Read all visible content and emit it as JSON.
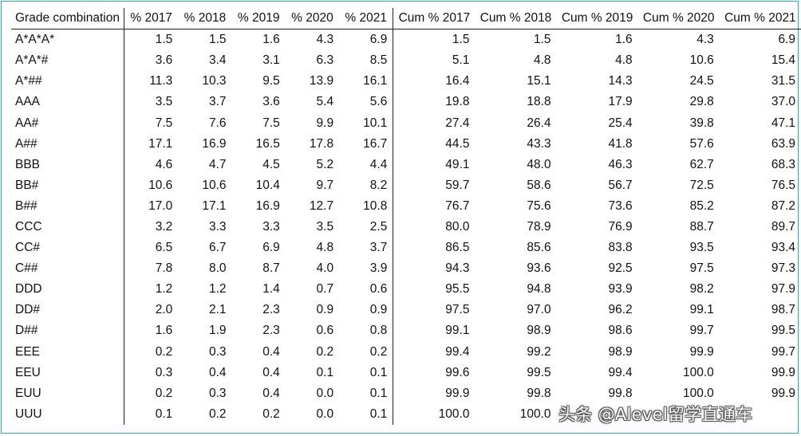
{
  "table": {
    "headers": [
      "Grade combination",
      "% 2017",
      "% 2018",
      "% 2019",
      "% 2020",
      "% 2021",
      "Cum % 2017",
      "Cum % 2018",
      "Cum % 2019",
      "Cum % 2020",
      "Cum % 2021"
    ],
    "rows": [
      [
        "A*A*A*",
        "1.5",
        "1.5",
        "1.6",
        "4.3",
        "6.9",
        "1.5",
        "1.5",
        "1.6",
        "4.3",
        "6.9"
      ],
      [
        "A*A*#",
        "3.6",
        "3.4",
        "3.1",
        "6.3",
        "8.5",
        "5.1",
        "4.8",
        "4.8",
        "10.6",
        "15.4"
      ],
      [
        "A*##",
        "11.3",
        "10.3",
        "9.5",
        "13.9",
        "16.1",
        "16.4",
        "15.1",
        "14.3",
        "24.5",
        "31.5"
      ],
      [
        "AAA",
        "3.5",
        "3.7",
        "3.6",
        "5.4",
        "5.6",
        "19.8",
        "18.8",
        "17.9",
        "29.8",
        "37.0"
      ],
      [
        "AA#",
        "7.5",
        "7.6",
        "7.5",
        "9.9",
        "10.1",
        "27.4",
        "26.4",
        "25.4",
        "39.8",
        "47.1"
      ],
      [
        "A##",
        "17.1",
        "16.9",
        "16.5",
        "17.8",
        "16.7",
        "44.5",
        "43.3",
        "41.8",
        "57.6",
        "63.9"
      ],
      [
        "BBB",
        "4.6",
        "4.7",
        "4.5",
        "5.2",
        "4.4",
        "49.1",
        "48.0",
        "46.3",
        "62.7",
        "68.3"
      ],
      [
        "BB#",
        "10.6",
        "10.6",
        "10.4",
        "9.7",
        "8.2",
        "59.7",
        "58.6",
        "56.7",
        "72.5",
        "76.5"
      ],
      [
        "B##",
        "17.0",
        "17.1",
        "16.9",
        "12.7",
        "10.8",
        "76.7",
        "75.6",
        "73.6",
        "85.2",
        "87.2"
      ],
      [
        "CCC",
        "3.2",
        "3.3",
        "3.3",
        "3.5",
        "2.5",
        "80.0",
        "78.9",
        "76.9",
        "88.7",
        "89.7"
      ],
      [
        "CC#",
        "6.5",
        "6.7",
        "6.9",
        "4.8",
        "3.7",
        "86.5",
        "85.6",
        "83.8",
        "93.5",
        "93.4"
      ],
      [
        "C##",
        "7.8",
        "8.0",
        "8.7",
        "4.0",
        "3.9",
        "94.3",
        "93.6",
        "92.5",
        "97.5",
        "97.3"
      ],
      [
        "DDD",
        "1.2",
        "1.2",
        "1.4",
        "0.7",
        "0.6",
        "95.5",
        "94.8",
        "93.9",
        "98.2",
        "97.9"
      ],
      [
        "DD#",
        "2.0",
        "2.1",
        "2.3",
        "0.9",
        "0.9",
        "97.5",
        "97.0",
        "96.2",
        "99.1",
        "98.7"
      ],
      [
        "D##",
        "1.6",
        "1.9",
        "2.3",
        "0.6",
        "0.8",
        "99.1",
        "98.9",
        "98.6",
        "99.7",
        "99.5"
      ],
      [
        "EEE",
        "0.2",
        "0.3",
        "0.4",
        "0.2",
        "0.2",
        "99.4",
        "99.2",
        "98.9",
        "99.9",
        "99.7"
      ],
      [
        "EEU",
        "0.3",
        "0.4",
        "0.4",
        "0.1",
        "0.1",
        "99.6",
        "99.5",
        "99.4",
        "100.0",
        "99.9"
      ],
      [
        "EUU",
        "0.2",
        "0.3",
        "0.4",
        "0.0",
        "0.1",
        "99.9",
        "99.8",
        "99.8",
        "100.0",
        "99.9"
      ],
      [
        "UUU",
        "0.1",
        "0.2",
        "0.2",
        "0.0",
        "0.1",
        "100.0",
        "100.0",
        "",
        "",
        ""
      ]
    ]
  },
  "watermark": "头条 @Alevel留学直通车"
}
